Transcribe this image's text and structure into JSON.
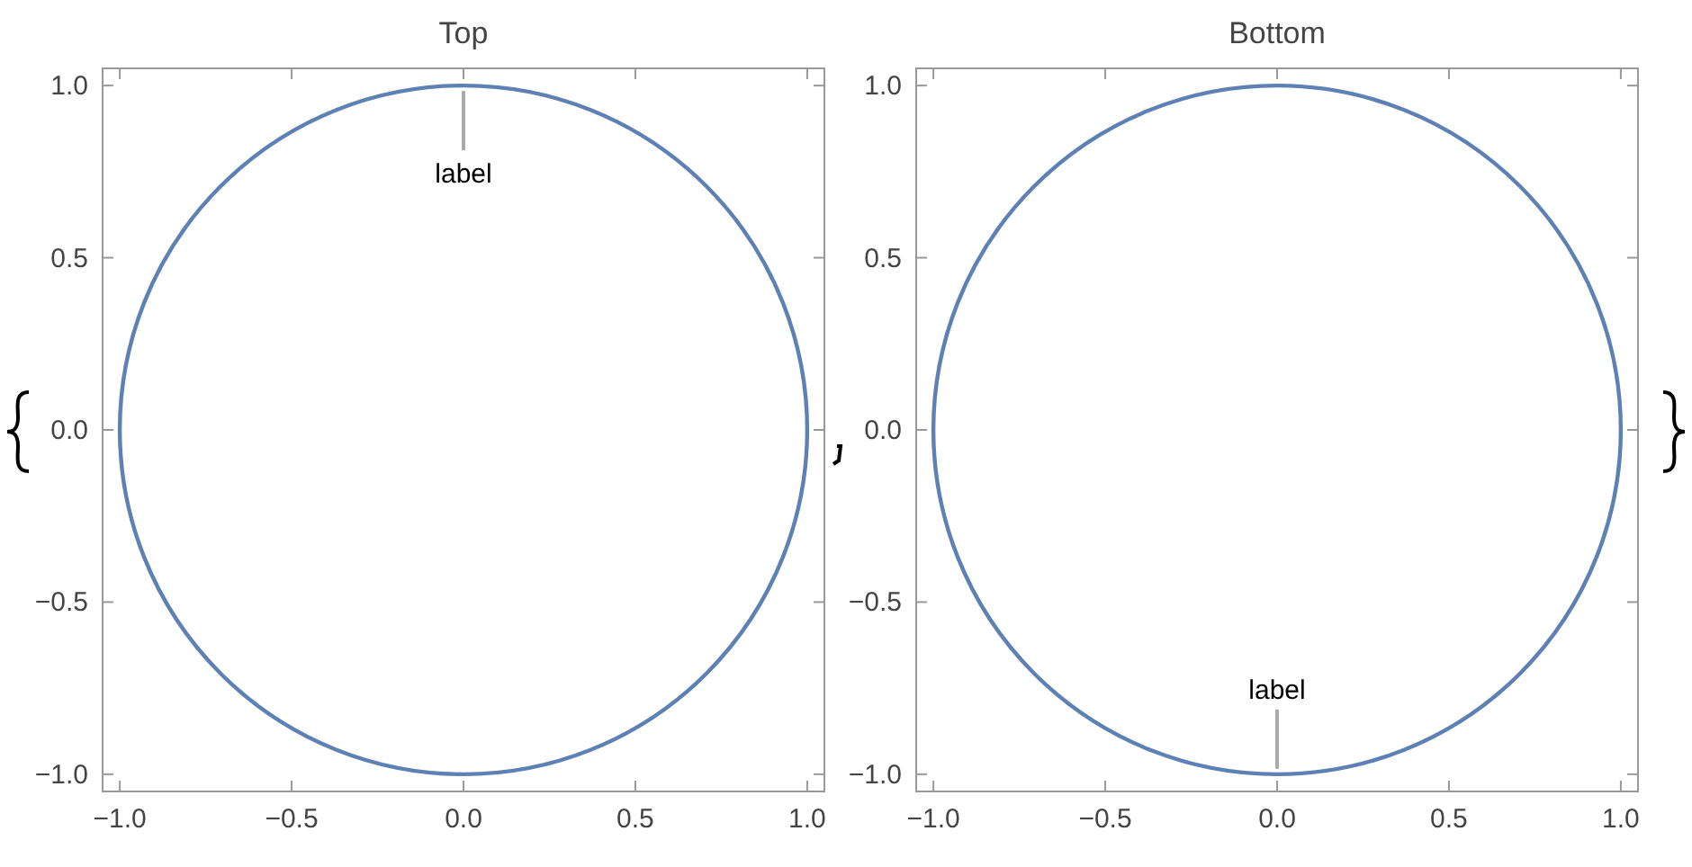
{
  "chart_data": [
    {
      "type": "line",
      "title": "Top",
      "xlim": [
        -1.05,
        1.05
      ],
      "ylim": [
        -1.05,
        1.05
      ],
      "xticks": [
        {
          "value": -1,
          "label": "−1.0"
        },
        {
          "value": -0.5,
          "label": "−0.5"
        },
        {
          "value": 0,
          "label": "0.0"
        },
        {
          "value": 0.5,
          "label": "0.5"
        },
        {
          "value": 1,
          "label": "1.0"
        }
      ],
      "yticks": [
        {
          "value": -1,
          "label": "−1.0"
        },
        {
          "value": -0.5,
          "label": "−0.5"
        },
        {
          "value": 0,
          "label": "0.0"
        },
        {
          "value": 0.5,
          "label": "0.5"
        },
        {
          "value": 1,
          "label": "1.0"
        }
      ],
      "annotations": [
        "label"
      ],
      "grid": false
    },
    {
      "type": "line",
      "title": "Bottom",
      "xlim": [
        -1.05,
        1.05
      ],
      "ylim": [
        -1.05,
        1.05
      ],
      "xticks": [
        {
          "value": -1,
          "label": "−1.0"
        },
        {
          "value": -0.5,
          "label": "−0.5"
        },
        {
          "value": 0,
          "label": "0.0"
        },
        {
          "value": 0.5,
          "label": "0.5"
        },
        {
          "value": 1,
          "label": "1.0"
        }
      ],
      "yticks": [
        {
          "value": -1,
          "label": "−1.0"
        },
        {
          "value": -0.5,
          "label": "−0.5"
        },
        {
          "value": 0,
          "label": "0.0"
        },
        {
          "value": 0.5,
          "label": "0.5"
        },
        {
          "value": 1,
          "label": "1.0"
        }
      ],
      "annotations": [
        "label"
      ],
      "grid": false
    }
  ]
}
